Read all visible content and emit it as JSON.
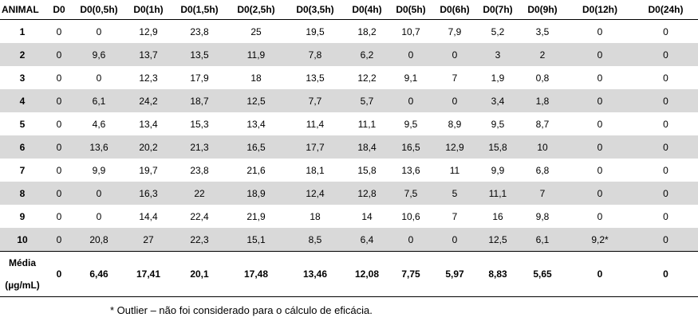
{
  "table": {
    "headers": [
      "ANIMAL",
      "D0",
      "D0(0,5h)",
      "D0(1h)",
      "D0(1,5h)",
      "D0(2,5h)",
      "D0(3,5h)",
      "D0(4h)",
      "D0(5h)",
      "D0(6h)",
      "D0(7h)",
      "D0(9h)",
      "D0(12h)",
      "D0(24h)"
    ],
    "rows": [
      [
        "1",
        "0",
        "0",
        "12,9",
        "23,8",
        "25",
        "19,5",
        "18,2",
        "10,7",
        "7,9",
        "5,2",
        "3,5",
        "0",
        "0"
      ],
      [
        "2",
        "0",
        "9,6",
        "13,7",
        "13,5",
        "11,9",
        "7,8",
        "6,2",
        "0",
        "0",
        "3",
        "2",
        "0",
        "0"
      ],
      [
        "3",
        "0",
        "0",
        "12,3",
        "17,9",
        "18",
        "13,5",
        "12,2",
        "9,1",
        "7",
        "1,9",
        "0,8",
        "0",
        "0"
      ],
      [
        "4",
        "0",
        "6,1",
        "24,2",
        "18,7",
        "12,5",
        "7,7",
        "5,7",
        "0",
        "0",
        "3,4",
        "1,8",
        "0",
        "0"
      ],
      [
        "5",
        "0",
        "4,6",
        "13,4",
        "15,3",
        "13,4",
        "11,4",
        "11,1",
        "9,5",
        "8,9",
        "9,5",
        "8,7",
        "0",
        "0"
      ],
      [
        "6",
        "0",
        "13,6",
        "20,2",
        "21,3",
        "16,5",
        "17,7",
        "18,4",
        "16,5",
        "12,9",
        "15,8",
        "10",
        "0",
        "0"
      ],
      [
        "7",
        "0",
        "9,9",
        "19,7",
        "23,8",
        "21,6",
        "18,1",
        "15,8",
        "13,6",
        "11",
        "9,9",
        "6,8",
        "0",
        "0"
      ],
      [
        "8",
        "0",
        "0",
        "16,3",
        "22",
        "18,9",
        "12,4",
        "12,8",
        "7,5",
        "5",
        "11,1",
        "7",
        "0",
        "0"
      ],
      [
        "9",
        "0",
        "0",
        "14,4",
        "22,4",
        "21,9",
        "18",
        "14",
        "10,6",
        "7",
        "16",
        "9,8",
        "0",
        "0"
      ],
      [
        "10",
        "0",
        "20,8",
        "27",
        "22,3",
        "15,1",
        "8,5",
        "6,4",
        "0",
        "0",
        "12,5",
        "6,1",
        "9,2*",
        "0"
      ]
    ],
    "mean_label_line1": "Média",
    "mean_label_line2": "(µg/mL)",
    "mean_values": [
      "0",
      "6,46",
      "17,41",
      "20,1",
      "17,48",
      "13,46",
      "12,08",
      "7,75",
      "5,97",
      "8,83",
      "5,65",
      "0",
      "0"
    ],
    "row_shade_color": "#d9d9d9"
  },
  "footnote": "* Outlier – não foi considerado para o cálculo de eficácia."
}
